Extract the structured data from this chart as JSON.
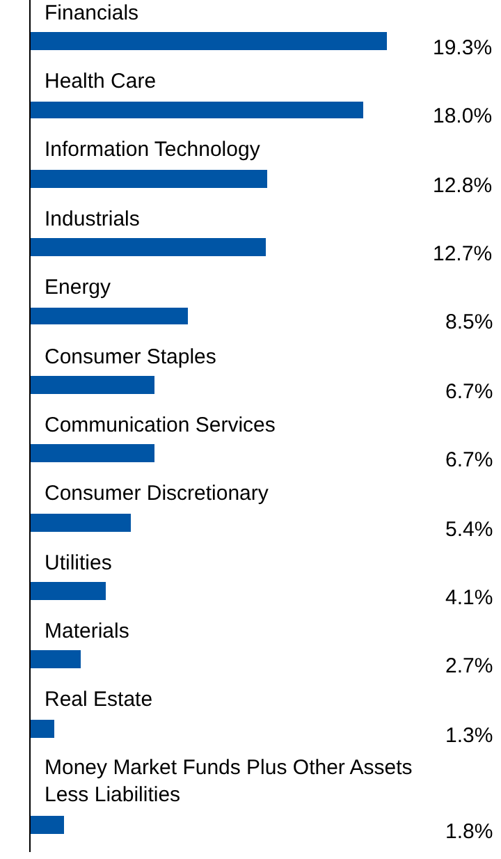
{
  "chart_data": {
    "type": "bar",
    "orientation": "horizontal",
    "categories": [
      "Financials",
      "Health Care",
      "Information Technology",
      "Industrials",
      "Energy",
      "Consumer Staples",
      "Communication Services",
      "Consumer Discretionary",
      "Utilities",
      "Materials",
      "Real Estate",
      "Money Market Funds Plus Other Assets\nLess Liabilities"
    ],
    "values": [
      19.3,
      18.0,
      12.8,
      12.7,
      8.5,
      6.7,
      6.7,
      5.4,
      4.1,
      2.7,
      1.3,
      1.8
    ],
    "value_labels": [
      "19.3%",
      "18.0%",
      "12.8%",
      "12.7%",
      "8.5%",
      "6.7%",
      "6.7%",
      "5.4%",
      "4.1%",
      "2.7%",
      "1.3%",
      "1.8%"
    ],
    "color": "#0055a5",
    "legend": false
  }
}
